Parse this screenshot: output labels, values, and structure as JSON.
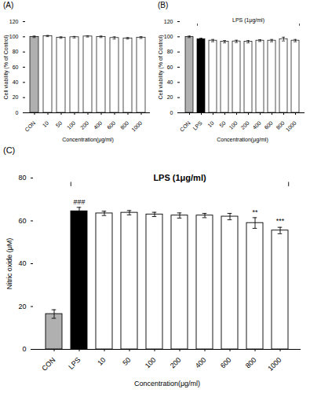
{
  "chart_data": [
    {
      "type": "bar",
      "title": "(A)",
      "categories": [
        "CON",
        "10",
        "50",
        "100",
        "200",
        "400",
        "600",
        "800",
        "1000"
      ],
      "values": [
        100,
        101,
        99,
        99.5,
        100.5,
        100,
        98.5,
        98,
        99
      ],
      "errors": [
        1.0,
        0.8,
        1.0,
        1.0,
        0.8,
        1.0,
        1.5,
        1.0,
        1.2
      ],
      "colors": [
        "#b0b0b0",
        "white",
        "white",
        "white",
        "white",
        "white",
        "white",
        "white",
        "white"
      ],
      "ylabel": "Cell viability (% of Control)",
      "xlabel": "Concentration(μg/ml)",
      "ylim": [
        0,
        120
      ],
      "yticks": [
        0,
        20,
        40,
        60,
        80,
        100,
        120
      ]
    },
    {
      "type": "bar",
      "title": "(B)",
      "categories": [
        "CON",
        "LPS",
        "10",
        "50",
        "100",
        "200",
        "400",
        "600",
        "800",
        "1000"
      ],
      "values": [
        100,
        97,
        95,
        93.5,
        94,
        93.5,
        95,
        95,
        97,
        95
      ],
      "errors": [
        1.0,
        1.2,
        1.5,
        1.5,
        1.5,
        1.5,
        1.2,
        1.5,
        2.5,
        1.5
      ],
      "colors": [
        "#b0b0b0",
        "black",
        "white",
        "white",
        "white",
        "white",
        "white",
        "white",
        "white",
        "white"
      ],
      "ylabel": "Cell viability (% of Control)",
      "xlabel": "Concentration(μg/ml)",
      "ylim": [
        0,
        120
      ],
      "yticks": [
        0,
        20,
        40,
        60,
        80,
        100,
        120
      ],
      "annotations": [
        {
          "text": "LPS (1μg/ml)",
          "from": "LPS",
          "to": "1000"
        }
      ]
    },
    {
      "type": "bar",
      "title": "(C)",
      "categories": [
        "CON",
        "LPS",
        "10",
        "50",
        "100",
        "200",
        "400",
        "600",
        "800",
        "1000"
      ],
      "values": [
        16.5,
        64.5,
        63.5,
        63.8,
        63.0,
        62.5,
        62.5,
        62.0,
        59.0,
        55.5
      ],
      "errors": [
        2.0,
        1.8,
        1.0,
        1.0,
        1.0,
        1.2,
        1.0,
        1.5,
        2.5,
        1.5
      ],
      "colors": [
        "#b0b0b0",
        "black",
        "white",
        "white",
        "white",
        "white",
        "white",
        "white",
        "white",
        "white"
      ],
      "ylabel": "Nitric oxide (μM)",
      "xlabel": "Concentration(μg/ml)",
      "ylim": [
        0,
        80
      ],
      "yticks": [
        0,
        20,
        40,
        60,
        80
      ],
      "annotations": [
        {
          "category": "LPS",
          "y": 67.5,
          "text": "###"
        },
        {
          "category": "800",
          "y": 62.5,
          "text": "**"
        },
        {
          "category": "1000",
          "y": 58.5,
          "text": "***"
        },
        {
          "text": "LPS (1μg/ml)",
          "from": "LPS",
          "to": "1000"
        }
      ]
    }
  ]
}
